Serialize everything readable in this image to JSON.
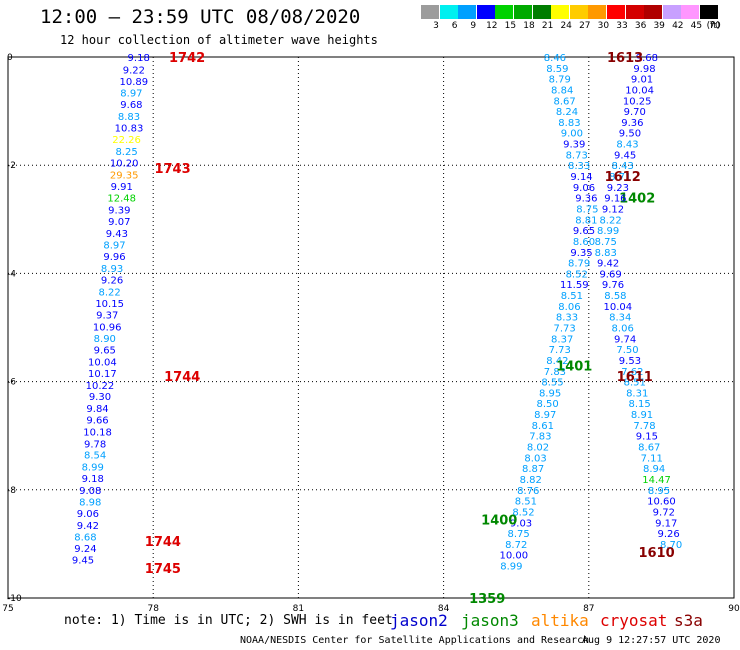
{
  "chart_data": {
    "type": "scatter",
    "title": "12:00 – 23:59 UTC 08/08/2020",
    "subtitle": "12 hour collection of altimeter wave heights",
    "xlim": [
      75,
      90
    ],
    "ylim": [
      -10,
      0
    ],
    "x_ticks": [
      "75",
      "78",
      "81",
      "84",
      "87",
      "90"
    ],
    "y_ticks": [
      "0",
      "-2",
      "-4",
      "-6",
      "-8",
      "-10"
    ],
    "color_scale": {
      "unit": "(ft)",
      "labels": [
        "3",
        "6",
        "9",
        "12",
        "15",
        "18",
        "21",
        "24",
        "27",
        "30",
        "33",
        "36",
        "39",
        "42",
        "45",
        "70"
      ],
      "colors": [
        "#9c9c9c",
        "#00f0f0",
        "#00a0ff",
        "#0000ff",
        "#00d200",
        "#00aa00",
        "#007d00",
        "#ffff00",
        "#ffcc00",
        "#ff9900",
        "#ff0000",
        "#d40000",
        "#b00000",
        "#c8a0ff",
        "#ff96ff",
        "#000000"
      ]
    },
    "series": [
      {
        "name": "cryosat",
        "color": "#dd0000",
        "labels": [
          {
            "x": 78.7,
            "y": 0.0,
            "t": "1742"
          },
          {
            "x": 78.4,
            "y": -2.05,
            "t": "1743"
          },
          {
            "x": 78.6,
            "y": -5.9,
            "t": "1744"
          },
          {
            "x": 78.2,
            "y": -8.95,
            "t": "1744"
          },
          {
            "x": 78.2,
            "y": -9.45,
            "t": "1745"
          }
        ],
        "points": [
          {
            "x": 77.7,
            "y": 0.0,
            "v": "9.18"
          },
          {
            "x": 77.6,
            "y": -0.23,
            "v": "9.22"
          },
          {
            "x": 77.6,
            "y": -0.44,
            "v": "10.89"
          },
          {
            "x": 77.55,
            "y": -0.66,
            "v": "8.97"
          },
          {
            "x": 77.55,
            "y": -0.87,
            "v": "9.68"
          },
          {
            "x": 77.5,
            "y": -1.09,
            "v": "8.83"
          },
          {
            "x": 77.5,
            "y": -1.3,
            "v": "10.83"
          },
          {
            "x": 77.45,
            "y": -1.52,
            "v": "22.26"
          },
          {
            "x": 77.45,
            "y": -1.74,
            "v": "8.25"
          },
          {
            "x": 77.4,
            "y": -1.95,
            "v": "10.20"
          },
          {
            "x": 77.4,
            "y": -2.17,
            "v": "29.35"
          },
          {
            "x": 77.35,
            "y": -2.38,
            "v": "9.91"
          },
          {
            "x": 77.35,
            "y": -2.6,
            "v": "12.48"
          },
          {
            "x": 77.3,
            "y": -2.82,
            "v": "9.39"
          },
          {
            "x": 77.3,
            "y": -3.03,
            "v": "9.07"
          },
          {
            "x": 77.25,
            "y": -3.25,
            "v": "9.43"
          },
          {
            "x": 77.2,
            "y": -3.47,
            "v": "8.97"
          },
          {
            "x": 77.2,
            "y": -3.68,
            "v": "9.96"
          },
          {
            "x": 77.15,
            "y": -3.9,
            "v": "8.93"
          },
          {
            "x": 77.15,
            "y": -4.11,
            "v": "9.26"
          },
          {
            "x": 77.1,
            "y": -4.33,
            "v": "8.22"
          },
          {
            "x": 77.1,
            "y": -4.55,
            "v": "10.15"
          },
          {
            "x": 77.05,
            "y": -4.76,
            "v": "9.37"
          },
          {
            "x": 77.05,
            "y": -4.98,
            "v": "10.96"
          },
          {
            "x": 77.0,
            "y": -5.19,
            "v": "8.90"
          },
          {
            "x": 77.0,
            "y": -5.41,
            "v": "9.65"
          },
          {
            "x": 76.95,
            "y": -5.63,
            "v": "10.04"
          },
          {
            "x": 76.95,
            "y": -5.84,
            "v": "10.17"
          },
          {
            "x": 76.9,
            "y": -6.06,
            "v": "10.22"
          },
          {
            "x": 76.9,
            "y": -6.27,
            "v": "9.30"
          },
          {
            "x": 76.85,
            "y": -6.49,
            "v": "9.84"
          },
          {
            "x": 76.85,
            "y": -6.7,
            "v": "9.66"
          },
          {
            "x": 76.85,
            "y": -6.92,
            "v": "10.18"
          },
          {
            "x": 76.8,
            "y": -7.14,
            "v": "9.78"
          },
          {
            "x": 76.8,
            "y": -7.35,
            "v": "8.54"
          },
          {
            "x": 76.75,
            "y": -7.57,
            "v": "8.99"
          },
          {
            "x": 76.75,
            "y": -7.78,
            "v": "9.18"
          },
          {
            "x": 76.7,
            "y": -8.0,
            "v": "9.08"
          },
          {
            "x": 76.7,
            "y": -8.22,
            "v": "8.98"
          },
          {
            "x": 76.65,
            "y": -8.43,
            "v": "9.06"
          },
          {
            "x": 76.65,
            "y": -8.65,
            "v": "9.42"
          },
          {
            "x": 76.6,
            "y": -8.86,
            "v": "8.68"
          },
          {
            "x": 76.6,
            "y": -9.08,
            "v": "9.24"
          },
          {
            "x": 76.55,
            "y": -9.29,
            "v": "9.45"
          }
        ]
      },
      {
        "name": "jason3",
        "color": "#008800",
        "labels": [
          {
            "x": 88.0,
            "y": -2.6,
            "t": "1402"
          },
          {
            "x": 86.7,
            "y": -5.7,
            "t": "1401"
          },
          {
            "x": 85.15,
            "y": -8.55,
            "t": "1400"
          },
          {
            "x": 84.9,
            "y": -10.0,
            "t": "1359"
          }
        ],
        "points": [
          {
            "x": 86.3,
            "y": 0.0,
            "v": "8.46"
          },
          {
            "x": 86.35,
            "y": -0.2,
            "v": "8.59"
          },
          {
            "x": 86.4,
            "y": -0.4,
            "v": "8.79"
          },
          {
            "x": 86.45,
            "y": -0.6,
            "v": "8.84"
          },
          {
            "x": 86.5,
            "y": -0.8,
            "v": "8.67"
          },
          {
            "x": 86.55,
            "y": -1.0,
            "v": "8.24"
          },
          {
            "x": 86.6,
            "y": -1.2,
            "v": "8.83"
          },
          {
            "x": 86.65,
            "y": -1.4,
            "v": "9.00"
          },
          {
            "x": 86.7,
            "y": -1.6,
            "v": "9.39"
          },
          {
            "x": 86.75,
            "y": -1.8,
            "v": "8.73"
          },
          {
            "x": 86.8,
            "y": -2.0,
            "v": "8.33"
          },
          {
            "x": 86.85,
            "y": -2.2,
            "v": "9.14"
          },
          {
            "x": 86.9,
            "y": -2.4,
            "v": "9.06"
          },
          {
            "x": 86.95,
            "y": -2.6,
            "v": "9.36"
          },
          {
            "x": 86.97,
            "y": -2.8,
            "v": "8.75"
          },
          {
            "x": 86.95,
            "y": -3.0,
            "v": "8.81"
          },
          {
            "x": 86.9,
            "y": -3.2,
            "v": "9.65"
          },
          {
            "x": 86.9,
            "y": -3.4,
            "v": "8.60"
          },
          {
            "x": 86.85,
            "y": -3.6,
            "v": "9.35"
          },
          {
            "x": 86.8,
            "y": -3.8,
            "v": "8.79"
          },
          {
            "x": 86.75,
            "y": -4.0,
            "v": "8.52"
          },
          {
            "x": 86.7,
            "y": -4.2,
            "v": "11.59"
          },
          {
            "x": 86.65,
            "y": -4.4,
            "v": "8.51"
          },
          {
            "x": 86.6,
            "y": -4.6,
            "v": "8.06"
          },
          {
            "x": 86.55,
            "y": -4.8,
            "v": "8.33"
          },
          {
            "x": 86.5,
            "y": -5.0,
            "v": "7.73"
          },
          {
            "x": 86.45,
            "y": -5.2,
            "v": "8.37"
          },
          {
            "x": 86.4,
            "y": -5.4,
            "v": "7.73"
          },
          {
            "x": 86.35,
            "y": -5.6,
            "v": "8.42"
          },
          {
            "x": 86.3,
            "y": -5.8,
            "v": "7.83"
          },
          {
            "x": 86.25,
            "y": -6.0,
            "v": "8.55"
          },
          {
            "x": 86.2,
            "y": -6.2,
            "v": "8.95"
          },
          {
            "x": 86.15,
            "y": -6.4,
            "v": "8.50"
          },
          {
            "x": 86.1,
            "y": -6.6,
            "v": "8.97"
          },
          {
            "x": 86.05,
            "y": -6.8,
            "v": "8.61"
          },
          {
            "x": 86.0,
            "y": -7.0,
            "v": "7.83"
          },
          {
            "x": 85.95,
            "y": -7.2,
            "v": "8.02"
          },
          {
            "x": 85.9,
            "y": -7.4,
            "v": "8.03"
          },
          {
            "x": 85.85,
            "y": -7.6,
            "v": "8.87"
          },
          {
            "x": 85.8,
            "y": -7.8,
            "v": "8.82"
          },
          {
            "x": 85.75,
            "y": -8.0,
            "v": "8.76"
          },
          {
            "x": 85.7,
            "y": -8.2,
            "v": "8.51"
          },
          {
            "x": 85.65,
            "y": -8.4,
            "v": "8.52"
          },
          {
            "x": 85.6,
            "y": -8.6,
            "v": "9.03"
          },
          {
            "x": 85.55,
            "y": -8.8,
            "v": "8.75"
          },
          {
            "x": 85.5,
            "y": -9.0,
            "v": "8.72"
          },
          {
            "x": 85.45,
            "y": -9.2,
            "v": "10.00"
          },
          {
            "x": 85.4,
            "y": -9.4,
            "v": "8.99"
          }
        ]
      },
      {
        "name": "s3a",
        "color": "#880000",
        "labels": [
          {
            "x": 87.75,
            "y": 0.0,
            "t": "1613"
          },
          {
            "x": 87.7,
            "y": -2.2,
            "t": "1612"
          },
          {
            "x": 87.95,
            "y": -5.9,
            "t": "1611"
          },
          {
            "x": 88.4,
            "y": -9.15,
            "t": "1610"
          }
        ],
        "points": [
          {
            "x": 88.2,
            "y": 0.0,
            "v": "9.68"
          },
          {
            "x": 88.15,
            "y": -0.2,
            "v": "9.98"
          },
          {
            "x": 88.1,
            "y": -0.4,
            "v": "9.01"
          },
          {
            "x": 88.05,
            "y": -0.6,
            "v": "10.04"
          },
          {
            "x": 88.0,
            "y": -0.8,
            "v": "10.25"
          },
          {
            "x": 87.95,
            "y": -1.0,
            "v": "9.70"
          },
          {
            "x": 87.9,
            "y": -1.2,
            "v": "9.36"
          },
          {
            "x": 87.85,
            "y": -1.4,
            "v": "9.50"
          },
          {
            "x": 87.8,
            "y": -1.6,
            "v": "8.43"
          },
          {
            "x": 87.75,
            "y": -1.8,
            "v": "9.45"
          },
          {
            "x": 87.7,
            "y": -2.0,
            "v": "8.43"
          },
          {
            "x": 87.65,
            "y": -2.2,
            "v": "8.71"
          },
          {
            "x": 87.6,
            "y": -2.4,
            "v": "9.23"
          },
          {
            "x": 87.55,
            "y": -2.6,
            "v": "9.16"
          },
          {
            "x": 87.5,
            "y": -2.8,
            "v": "9.12"
          },
          {
            "x": 87.45,
            "y": -3.0,
            "v": "8.22"
          },
          {
            "x": 87.4,
            "y": -3.2,
            "v": "8.99"
          },
          {
            "x": 87.35,
            "y": -3.4,
            "v": "8.75"
          },
          {
            "x": 87.35,
            "y": -3.6,
            "v": "8.83"
          },
          {
            "x": 87.4,
            "y": -3.8,
            "v": "9.42"
          },
          {
            "x": 87.45,
            "y": -4.0,
            "v": "9.69"
          },
          {
            "x": 87.5,
            "y": -4.2,
            "v": "9.76"
          },
          {
            "x": 87.55,
            "y": -4.4,
            "v": "8.58"
          },
          {
            "x": 87.6,
            "y": -4.6,
            "v": "10.04"
          },
          {
            "x": 87.65,
            "y": -4.8,
            "v": "8.34"
          },
          {
            "x": 87.7,
            "y": -5.0,
            "v": "8.06"
          },
          {
            "x": 87.75,
            "y": -5.2,
            "v": "9.74"
          },
          {
            "x": 87.8,
            "y": -5.4,
            "v": "7.50"
          },
          {
            "x": 87.85,
            "y": -5.6,
            "v": "9.53"
          },
          {
            "x": 87.9,
            "y": -5.8,
            "v": "7.62"
          },
          {
            "x": 87.95,
            "y": -6.0,
            "v": "8.51"
          },
          {
            "x": 88.0,
            "y": -6.2,
            "v": "8.31"
          },
          {
            "x": 88.05,
            "y": -6.4,
            "v": "8.15"
          },
          {
            "x": 88.1,
            "y": -6.6,
            "v": "8.91"
          },
          {
            "x": 88.15,
            "y": -6.8,
            "v": "7.78"
          },
          {
            "x": 88.2,
            "y": -7.0,
            "v": "9.15"
          },
          {
            "x": 88.25,
            "y": -7.2,
            "v": "8.67"
          },
          {
            "x": 88.3,
            "y": -7.4,
            "v": "7.11"
          },
          {
            "x": 88.35,
            "y": -7.6,
            "v": "8.94"
          },
          {
            "x": 88.4,
            "y": -7.8,
            "v": "14.47"
          },
          {
            "x": 88.45,
            "y": -8.0,
            "v": "8.95"
          },
          {
            "x": 88.5,
            "y": -8.2,
            "v": "10.60"
          },
          {
            "x": 88.55,
            "y": -8.4,
            "v": "9.72"
          },
          {
            "x": 88.6,
            "y": -8.6,
            "v": "9.17"
          },
          {
            "x": 88.65,
            "y": -8.8,
            "v": "9.26"
          },
          {
            "x": 88.7,
            "y": -9.0,
            "v": "8.70"
          }
        ]
      }
    ]
  },
  "footer": {
    "note": "note: 1) Time is in UTC; 2) SWH is in feet",
    "credit": "NOAA/NESDIS Center for Satellite Applications and Research",
    "timestamp": "Aug  9 12:27:57 UTC 2020",
    "legend": [
      {
        "name": "jason2",
        "color": "#0000cc"
      },
      {
        "name": "jason3",
        "color": "#008800"
      },
      {
        "name": "altika",
        "color": "#ff8800"
      },
      {
        "name": "cryosat",
        "color": "#dd0000"
      },
      {
        "name": "s3a",
        "color": "#880000"
      }
    ]
  }
}
